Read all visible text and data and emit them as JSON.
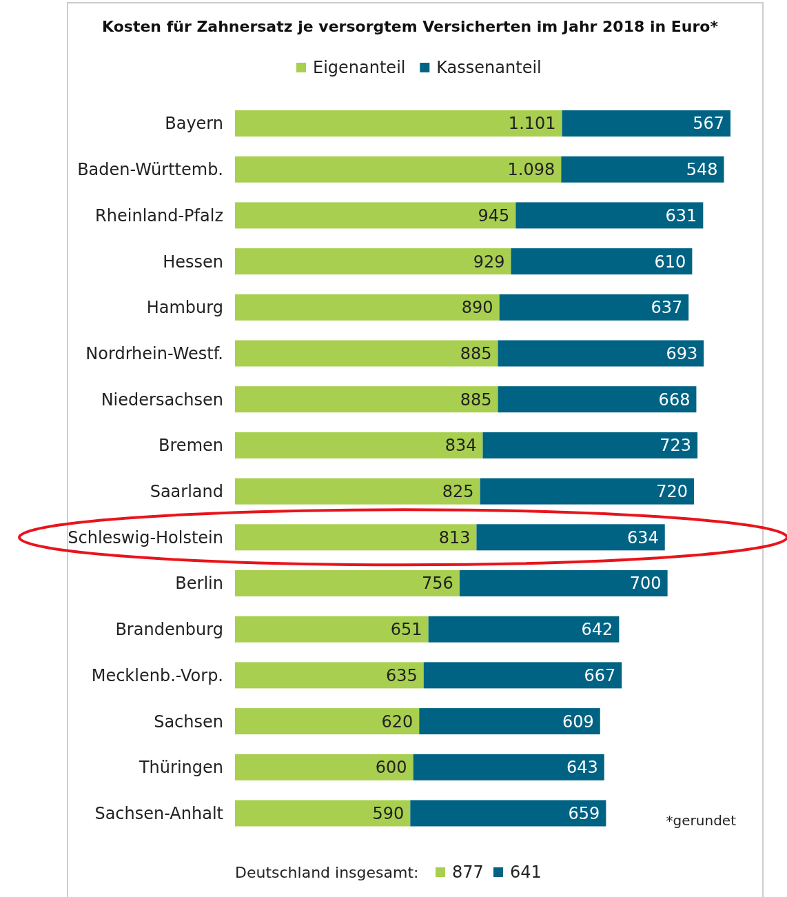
{
  "chart_data": {
    "type": "bar",
    "orientation": "horizontal",
    "stacked": true,
    "title": "Kosten für Zahnersatz je versorgtem Versicherten im Jahr 2018 in Euro*",
    "legend": "top",
    "categories": [
      "Bayern",
      "Baden-Württemb.",
      "Rheinland-Pfalz",
      "Hessen",
      "Hamburg",
      "Nordrhein-Westf.",
      "Niedersachsen",
      "Bremen",
      "Saarland",
      "Schleswig-Holstein",
      "Berlin",
      "Brandenburg",
      "Mecklenb.-Vorp.",
      "Sachsen",
      "Thüringen",
      "Sachsen-Anhalt"
    ],
    "series": [
      {
        "name": "Eigenanteil",
        "color": "#a8cf4f",
        "values": [
          1101,
          1098,
          945,
          929,
          890,
          885,
          885,
          834,
          825,
          813,
          756,
          651,
          635,
          620,
          600,
          590
        ],
        "value_labels": [
          "1.101",
          "1.098",
          "945",
          "929",
          "890",
          "885",
          "885",
          "834",
          "825",
          "813",
          "756",
          "651",
          "635",
          "620",
          "600",
          "590"
        ]
      },
      {
        "name": "Kassenanteil",
        "color": "#006384",
        "values": [
          567,
          548,
          631,
          610,
          637,
          693,
          668,
          723,
          720,
          634,
          700,
          642,
          667,
          609,
          643,
          659
        ],
        "value_labels": [
          "567",
          "548",
          "631",
          "610",
          "637",
          "693",
          "668",
          "723",
          "720",
          "634",
          "700",
          "642",
          "667",
          "609",
          "643",
          "659"
        ]
      }
    ],
    "annotations": [
      "*gerundet",
      "Deutschland insgesamt:",
      "877",
      "641"
    ]
  }
}
